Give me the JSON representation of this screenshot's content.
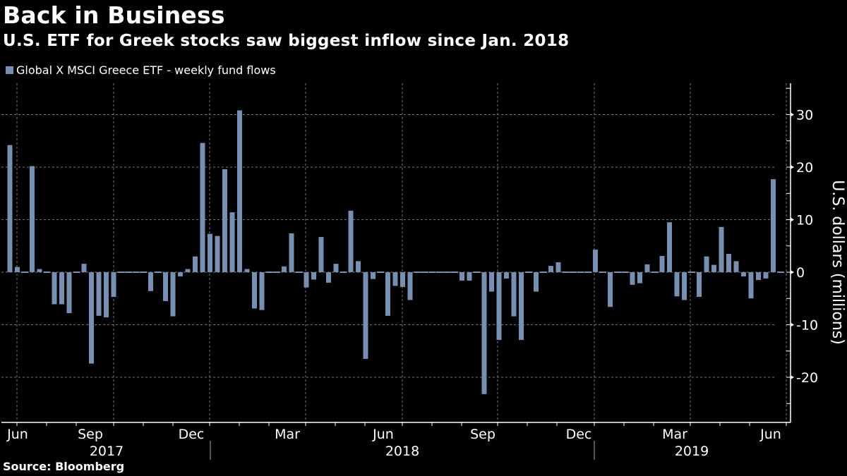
{
  "header": {
    "title": "Back in Business",
    "subtitle": "U.S. ETF for Greek stocks saw biggest inflow since Jan. 2018"
  },
  "legend": {
    "label": "Global X MSCI Greece ETF - weekly fund flows",
    "color": "#7590b3"
  },
  "footer": {
    "source": "Source: Bloomberg"
  },
  "chart_data": {
    "type": "bar",
    "title": "Back in Business",
    "subtitle": "U.S. ETF for Greek stocks saw biggest inflow since Jan. 2018",
    "xlabel": "",
    "ylabel": "U.S. dollars (millions)",
    "ylim": [
      -27,
      36
    ],
    "yticks": [
      30,
      20,
      10,
      0,
      -10,
      -20
    ],
    "ytick_labels": [
      "30",
      "20",
      "10",
      "0",
      "-10",
      "-20"
    ],
    "y_axis_side": "right",
    "grid": true,
    "legend_position": "top-left",
    "x_month_labels": [
      {
        "label": "Jun",
        "week": 0.5
      },
      {
        "label": "Sep",
        "week": 13
      },
      {
        "label": "Dec",
        "week": 25.5
      },
      {
        "label": "Mar",
        "week": 38
      },
      {
        "label": "Jun",
        "week": 51
      },
      {
        "label": "Sep",
        "week": 64
      },
      {
        "label": "Dec",
        "week": 77
      },
      {
        "label": "Mar",
        "week": 89.5
      },
      {
        "label": "Jun",
        "week": 102.5
      }
    ],
    "x_year_labels": [
      {
        "label": "2017",
        "week": 13
      },
      {
        "label": "2018",
        "week": 52.5
      },
      {
        "label": "2019",
        "week": 92.5
      }
    ],
    "year_dividers": [
      27,
      79
    ],
    "series": [
      {
        "name": "Global X MSCI Greece ETF - weekly fund flows",
        "color": "#7590b3",
        "values": [
          24.2,
          1.0,
          0,
          20.2,
          0.6,
          0,
          -6.1,
          -6.1,
          -7.8,
          0,
          1.6,
          -17.4,
          -8.3,
          -8.6,
          -4.7,
          0,
          0,
          0,
          0,
          -3.6,
          0,
          -5.5,
          -8.4,
          -0.8,
          0.6,
          3.0,
          24.6,
          7.3,
          6.9,
          19.6,
          11.4,
          30.8,
          0.6,
          -6.9,
          -7.2,
          0,
          0,
          1.1,
          7.4,
          0,
          -2.9,
          -1.4,
          6.7,
          -2.0,
          1.6,
          0,
          11.7,
          2.1,
          -16.5,
          -1.3,
          0,
          -8.3,
          -2.6,
          -2.8,
          -5.3,
          0,
          0,
          0,
          0,
          0,
          0,
          -1.6,
          -1.6,
          0,
          -23.2,
          -3.7,
          -12.9,
          -1.2,
          -8.4,
          -12.9,
          0,
          -3.7,
          0,
          1.2,
          1.9,
          0,
          0,
          0,
          0,
          4.3,
          0,
          -6.6,
          0,
          0,
          -2.4,
          -2.1,
          1.5,
          0,
          3.1,
          9.5,
          -4.6,
          -5.3,
          0,
          -4.7,
          3.0,
          1.4,
          8.6,
          3.5,
          2.1,
          -0.8,
          -5.0,
          -1.5,
          -1.2,
          17.7,
          0
        ]
      }
    ]
  }
}
